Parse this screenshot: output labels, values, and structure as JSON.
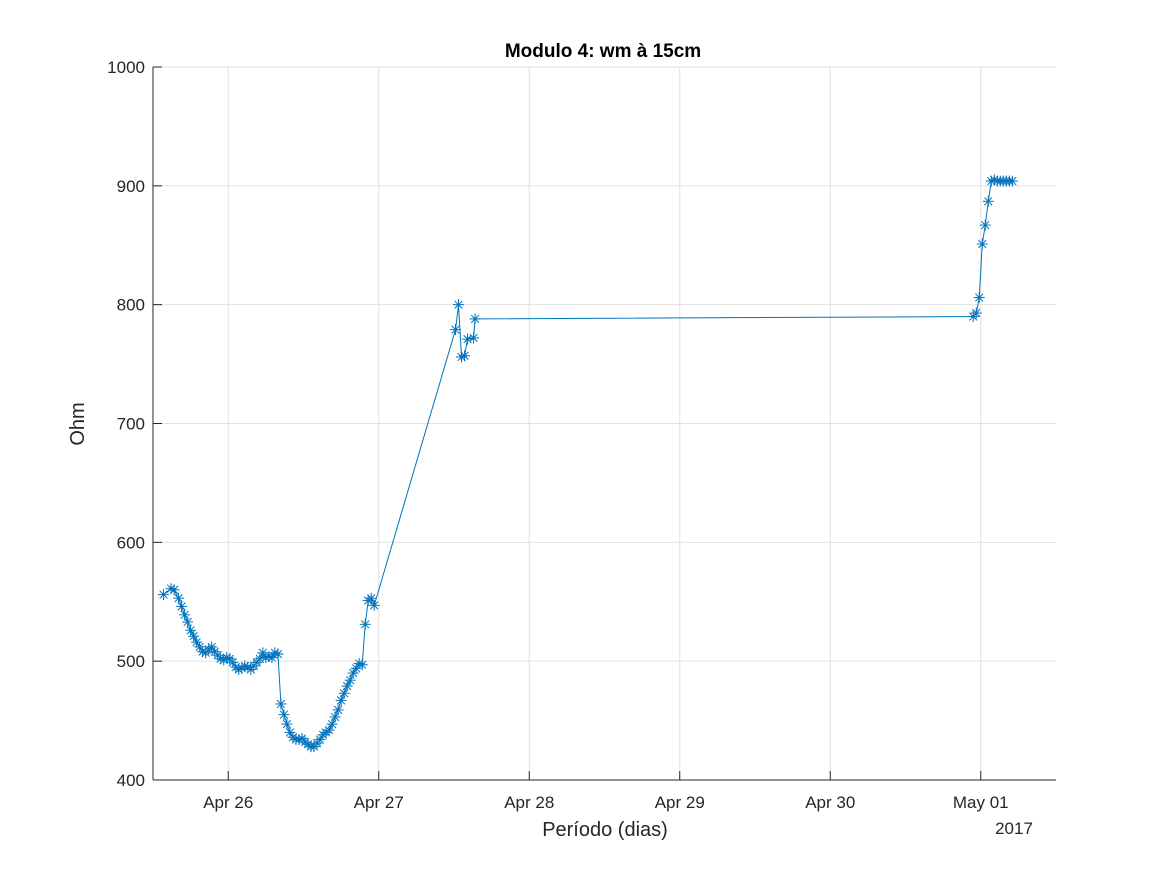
{
  "chart_data": {
    "type": "line",
    "title": "Modulo 4: wm à 15cm",
    "xlabel": "Período (dias)",
    "ylabel": "Ohm",
    "x_year_label": "2017",
    "xlim": [
      -0.5,
      5.5
    ],
    "ylim": [
      400,
      1000
    ],
    "grid": true,
    "x_ticks": [
      {
        "value": 0,
        "label": "Apr 26"
      },
      {
        "value": 1,
        "label": "Apr 27"
      },
      {
        "value": 2,
        "label": "Apr 28"
      },
      {
        "value": 3,
        "label": "Apr 29"
      },
      {
        "value": 4,
        "label": "Apr 30"
      },
      {
        "value": 5,
        "label": "May 01"
      }
    ],
    "y_ticks": [
      400,
      500,
      600,
      700,
      800,
      900,
      1000
    ],
    "series": [
      {
        "marker": "asterisk",
        "color": "#0072bd",
        "x": [
          -0.43,
          -0.38,
          -0.36,
          -0.33,
          -0.31,
          -0.29,
          -0.27,
          -0.25,
          -0.23,
          -0.21,
          -0.19,
          -0.17,
          -0.15,
          -0.13,
          -0.11,
          -0.09,
          -0.07,
          -0.05,
          -0.03,
          -0.01,
          0.01,
          0.03,
          0.05,
          0.07,
          0.09,
          0.11,
          0.13,
          0.15,
          0.17,
          0.19,
          0.21,
          0.23,
          0.25,
          0.27,
          0.29,
          0.31,
          0.33,
          0.35,
          0.37,
          0.39,
          0.41,
          0.43,
          0.45,
          0.47,
          0.49,
          0.51,
          0.53,
          0.55,
          0.57,
          0.59,
          0.61,
          0.63,
          0.65,
          0.67,
          0.69,
          0.71,
          0.73,
          0.75,
          0.77,
          0.79,
          0.81,
          0.83,
          0.85,
          0.87,
          0.89,
          0.91,
          0.93,
          0.95,
          0.97,
          1.51,
          1.53,
          1.55,
          1.57,
          1.59,
          1.63,
          1.64,
          4.95,
          4.97,
          4.99,
          5.01,
          5.03,
          5.05,
          5.07,
          5.09,
          5.11,
          5.13,
          5.15,
          5.17,
          5.19,
          5.21
        ],
        "y": [
          556,
          561,
          560,
          553,
          546,
          539,
          533,
          526,
          521,
          516,
          512,
          508,
          507,
          510,
          512,
          508,
          505,
          502,
          501,
          503,
          502,
          499,
          495,
          493,
          494,
          496,
          495,
          493,
          496,
          499,
          502,
          507,
          503,
          504,
          503,
          507,
          506,
          464,
          455,
          447,
          440,
          436,
          434,
          434,
          435,
          432,
          430,
          428,
          428,
          431,
          434,
          438,
          440,
          442,
          447,
          453,
          459,
          467,
          473,
          479,
          484,
          490,
          494,
          498,
          497,
          531,
          551,
          553,
          547,
          779,
          800,
          756,
          757,
          771,
          772,
          788,
          790,
          793,
          806,
          851,
          867,
          887,
          904,
          905,
          904,
          904,
          904,
          904,
          904,
          904
        ],
        "y_start_override": null
      }
    ]
  }
}
